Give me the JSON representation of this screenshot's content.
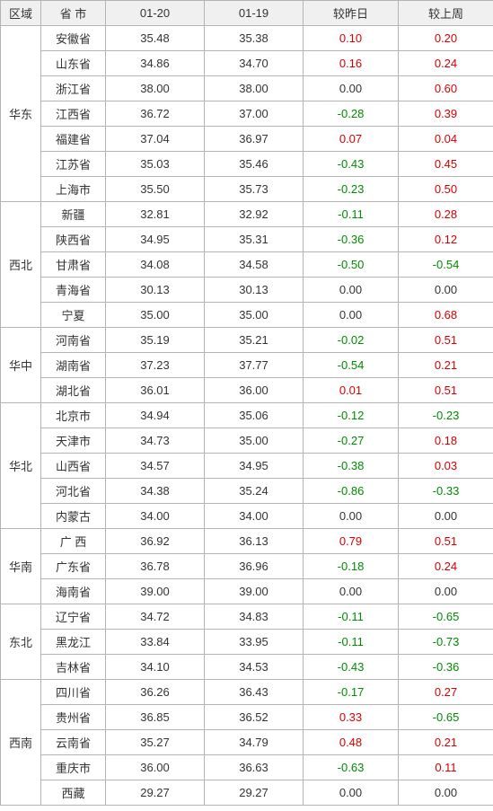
{
  "headers": {
    "region": "区域",
    "province": "省 市",
    "date1": "01-20",
    "date2": "01-19",
    "vs_yesterday": "较昨日",
    "vs_lastweek": "较上周"
  },
  "groups": [
    {
      "region": "华东",
      "rows": [
        {
          "province": "安徽省",
          "d1": "35.48",
          "d2": "35.38",
          "yday": "0.10",
          "wk": "0.20"
        },
        {
          "province": "山东省",
          "d1": "34.86",
          "d2": "34.70",
          "yday": "0.16",
          "wk": "0.24"
        },
        {
          "province": "浙江省",
          "d1": "38.00",
          "d2": "38.00",
          "yday": "0.00",
          "wk": "0.60"
        },
        {
          "province": "江西省",
          "d1": "36.72",
          "d2": "37.00",
          "yday": "-0.28",
          "wk": "0.39"
        },
        {
          "province": "福建省",
          "d1": "37.04",
          "d2": "36.97",
          "yday": "0.07",
          "wk": "0.04"
        },
        {
          "province": "江苏省",
          "d1": "35.03",
          "d2": "35.46",
          "yday": "-0.43",
          "wk": "0.45"
        },
        {
          "province": "上海市",
          "d1": "35.50",
          "d2": "35.73",
          "yday": "-0.23",
          "wk": "0.50"
        }
      ]
    },
    {
      "region": "西北",
      "rows": [
        {
          "province": "新疆",
          "d1": "32.81",
          "d2": "32.92",
          "yday": "-0.11",
          "wk": "0.28"
        },
        {
          "province": "陕西省",
          "d1": "34.95",
          "d2": "35.31",
          "yday": "-0.36",
          "wk": "0.12"
        },
        {
          "province": "甘肃省",
          "d1": "34.08",
          "d2": "34.58",
          "yday": "-0.50",
          "wk": "-0.54"
        },
        {
          "province": "青海省",
          "d1": "30.13",
          "d2": "30.13",
          "yday": "0.00",
          "wk": "0.00"
        },
        {
          "province": "宁夏",
          "d1": "35.00",
          "d2": "35.00",
          "yday": "0.00",
          "wk": "0.68"
        }
      ]
    },
    {
      "region": "华中",
      "rows": [
        {
          "province": "河南省",
          "d1": "35.19",
          "d2": "35.21",
          "yday": "-0.02",
          "wk": "0.51"
        },
        {
          "province": "湖南省",
          "d1": "37.23",
          "d2": "37.77",
          "yday": "-0.54",
          "wk": "0.21"
        },
        {
          "province": "湖北省",
          "d1": "36.01",
          "d2": "36.00",
          "yday": "0.01",
          "wk": "0.51"
        }
      ]
    },
    {
      "region": "华北",
      "rows": [
        {
          "province": "北京市",
          "d1": "34.94",
          "d2": "35.06",
          "yday": "-0.12",
          "wk": "-0.23"
        },
        {
          "province": "天津市",
          "d1": "34.73",
          "d2": "35.00",
          "yday": "-0.27",
          "wk": "0.18"
        },
        {
          "province": "山西省",
          "d1": "34.57",
          "d2": "34.95",
          "yday": "-0.38",
          "wk": "0.03"
        },
        {
          "province": "河北省",
          "d1": "34.38",
          "d2": "35.24",
          "yday": "-0.86",
          "wk": "-0.33"
        },
        {
          "province": "内蒙古",
          "d1": "34.00",
          "d2": "34.00",
          "yday": "0.00",
          "wk": "0.00"
        }
      ]
    },
    {
      "region": "华南",
      "rows": [
        {
          "province": "广 西",
          "d1": "36.92",
          "d2": "36.13",
          "yday": "0.79",
          "wk": "0.51"
        },
        {
          "province": "广东省",
          "d1": "36.78",
          "d2": "36.96",
          "yday": "-0.18",
          "wk": "0.24"
        },
        {
          "province": "海南省",
          "d1": "39.00",
          "d2": "39.00",
          "yday": "0.00",
          "wk": "0.00"
        }
      ]
    },
    {
      "region": "东北",
      "rows": [
        {
          "province": "辽宁省",
          "d1": "34.72",
          "d2": "34.83",
          "yday": "-0.11",
          "wk": "-0.65"
        },
        {
          "province": "黑龙江",
          "d1": "33.84",
          "d2": "33.95",
          "yday": "-0.11",
          "wk": "-0.73"
        },
        {
          "province": "吉林省",
          "d1": "34.10",
          "d2": "34.53",
          "yday": "-0.43",
          "wk": "-0.36"
        }
      ]
    },
    {
      "region": "西南",
      "rows": [
        {
          "province": "四川省",
          "d1": "36.26",
          "d2": "36.43",
          "yday": "-0.17",
          "wk": "0.27"
        },
        {
          "province": "贵州省",
          "d1": "36.85",
          "d2": "36.52",
          "yday": "0.33",
          "wk": "-0.65"
        },
        {
          "province": "云南省",
          "d1": "35.27",
          "d2": "34.79",
          "yday": "0.48",
          "wk": "0.21"
        },
        {
          "province": "重庆市",
          "d1": "36.00",
          "d2": "36.63",
          "yday": "-0.63",
          "wk": "0.11"
        },
        {
          "province": "西藏",
          "d1": "29.27",
          "d2": "29.27",
          "yday": "0.00",
          "wk": "0.00"
        }
      ]
    }
  ]
}
